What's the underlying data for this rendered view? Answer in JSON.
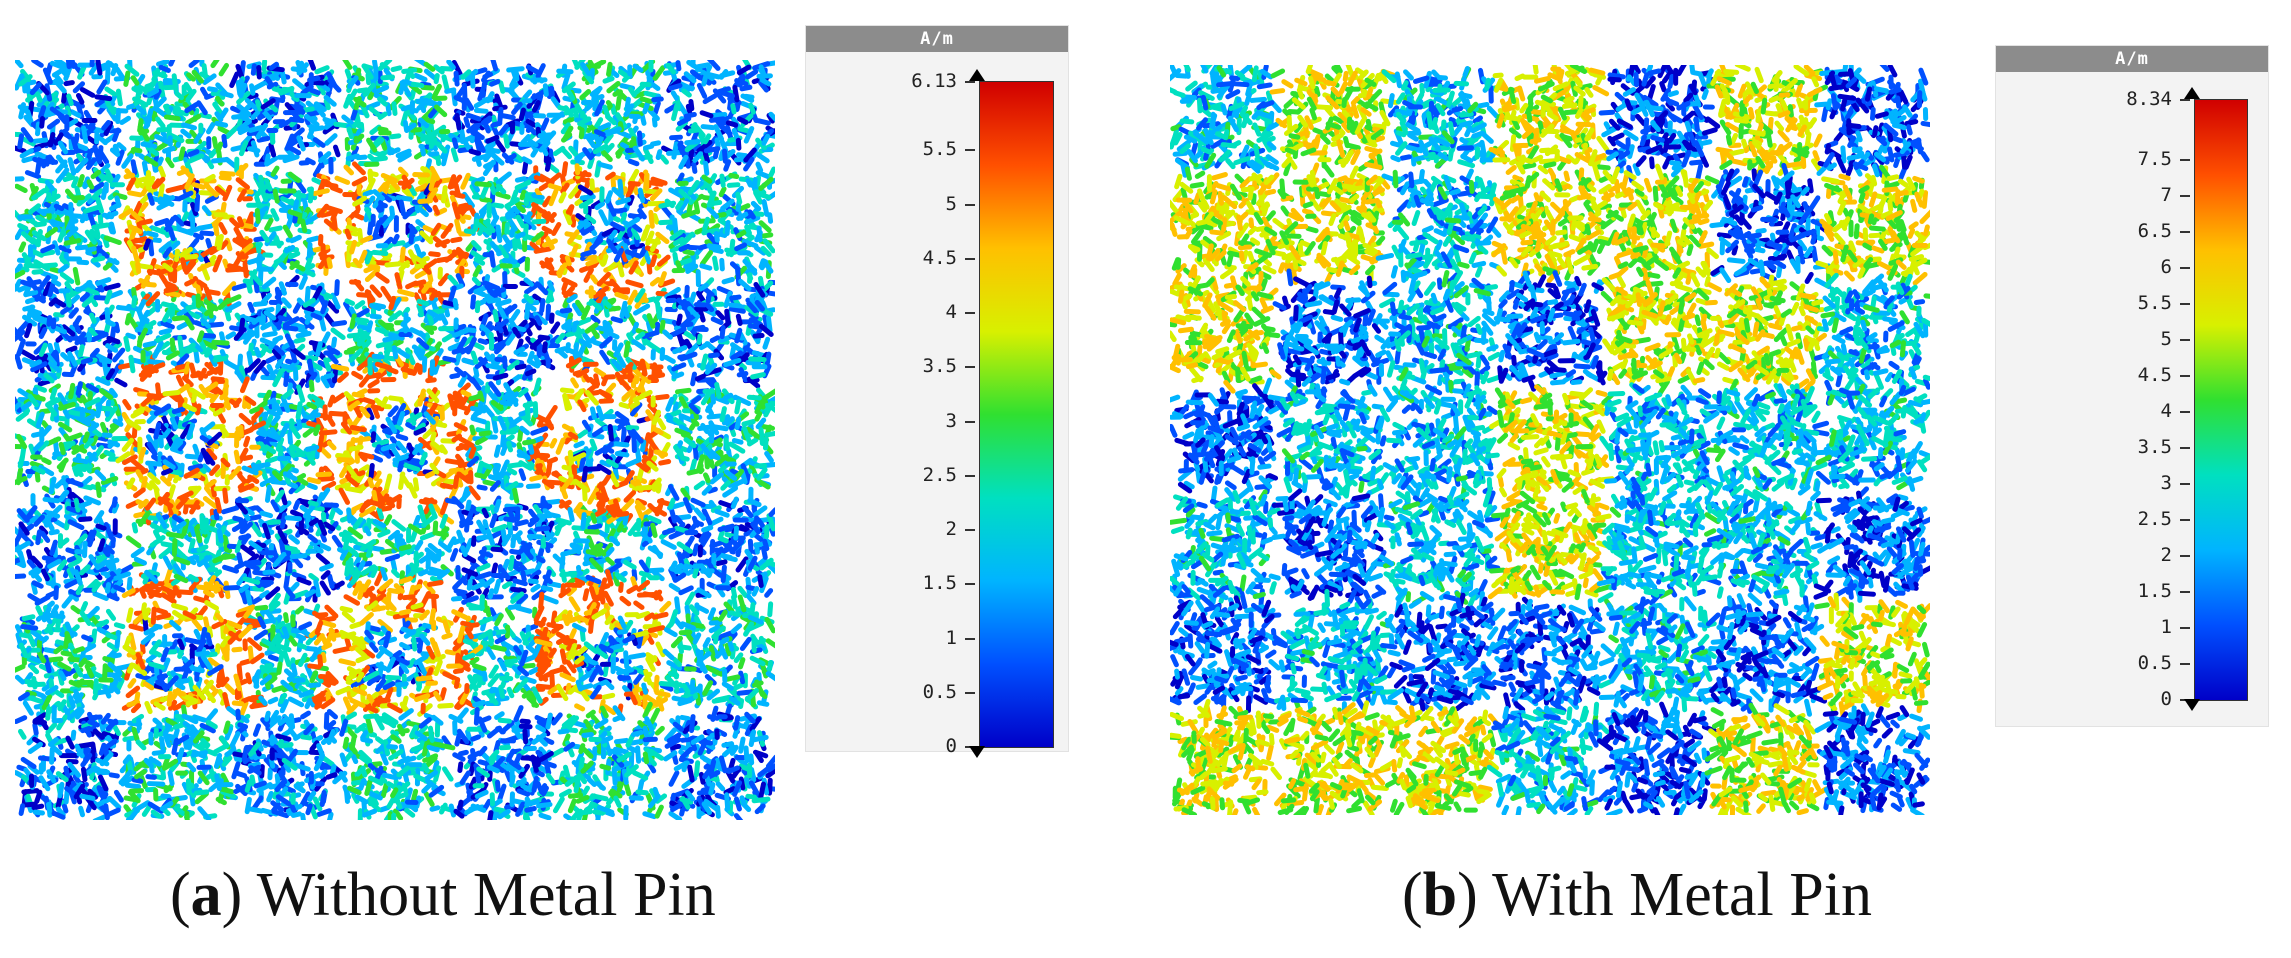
{
  "panels": [
    {
      "caption_letter": "a",
      "caption_text": "Without Metal Pin",
      "legend_unit": "A/m",
      "legend_max": "6.13",
      "legend_ticks": [
        "6.13",
        "5.5",
        "5",
        "4.5",
        "4",
        "3.5",
        "3",
        "2.5",
        "2",
        "1.5",
        "1",
        "0.5",
        "0"
      ],
      "grid_cells": 7
    },
    {
      "caption_letter": "b",
      "caption_text": "With Metal Pin",
      "legend_unit": "A/m",
      "legend_max": "8.34",
      "legend_ticks": [
        "8.34",
        "7.5",
        "7",
        "6.5",
        "6",
        "5.5",
        "5",
        "4.5",
        "4",
        "3.5",
        "3",
        "2.5",
        "2",
        "1.5",
        "1",
        "0.5",
        "0"
      ],
      "grid_cells": 7
    }
  ],
  "colormap": [
    "#0000c8",
    "#0050ff",
    "#00b4ff",
    "#00e0c0",
    "#30e030",
    "#d8f000",
    "#ffc000",
    "#ff5000",
    "#d00000"
  ]
}
